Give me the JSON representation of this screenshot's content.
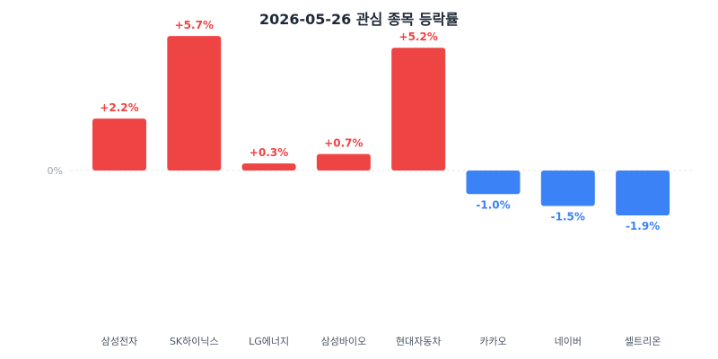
{
  "chart_data": {
    "type": "bar",
    "title": "2026-05-26 관심 종목 등락률",
    "zero_tick_label": "0%",
    "categories": [
      "삼성전자",
      "SK하이닉스",
      "LG에너지",
      "삼성바이오",
      "현대자동차",
      "카카오",
      "네이버",
      "셀트리온"
    ],
    "values": [
      2.2,
      5.7,
      0.3,
      0.7,
      5.2,
      -1.0,
      -1.5,
      -1.9
    ],
    "value_labels": [
      "+2.2%",
      "+5.7%",
      "+0.3%",
      "+0.7%",
      "+5.2%",
      "-1.0%",
      "-1.5%",
      "-1.9%"
    ],
    "grid": false,
    "colors": {
      "positive": "#ef4444",
      "negative": "#3b82f6"
    }
  }
}
